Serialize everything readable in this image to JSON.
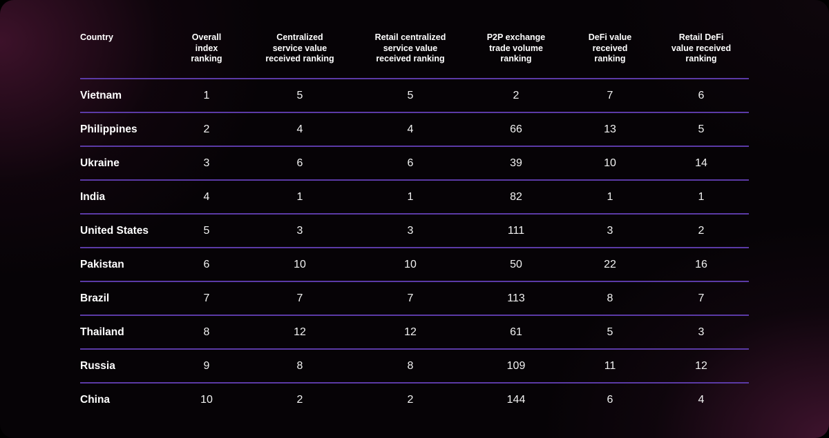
{
  "chart_data": {
    "type": "table",
    "columns": [
      "Country",
      "Overall index ranking",
      "Centralized service value received ranking",
      "Retail centralized service value received ranking",
      "P2P exchange trade volume ranking",
      "DeFi value received ranking",
      "Retail DeFi value received ranking"
    ],
    "header_lines": [
      [
        "Country"
      ],
      [
        "Overall",
        "index",
        "ranking"
      ],
      [
        "Centralized",
        "service value",
        "received ranking"
      ],
      [
        "Retail centralized",
        "service value",
        "received ranking"
      ],
      [
        "P2P exchange",
        "trade volume",
        "ranking"
      ],
      [
        "DeFi value",
        "received",
        "ranking"
      ],
      [
        "Retail DeFi",
        "value received",
        "ranking"
      ]
    ],
    "rows": [
      [
        "Vietnam",
        "1",
        "5",
        "5",
        "2",
        "7",
        "6"
      ],
      [
        "Philippines",
        "2",
        "4",
        "4",
        "66",
        "13",
        "5"
      ],
      [
        "Ukraine",
        "3",
        "6",
        "6",
        "39",
        "10",
        "14"
      ],
      [
        "India",
        "4",
        "1",
        "1",
        "82",
        "1",
        "1"
      ],
      [
        "United States",
        "5",
        "3",
        "3",
        "111",
        "3",
        "2"
      ],
      [
        "Pakistan",
        "6",
        "10",
        "10",
        "50",
        "22",
        "16"
      ],
      [
        "Brazil",
        "7",
        "7",
        "7",
        "113",
        "8",
        "7"
      ],
      [
        "Thailand",
        "8",
        "12",
        "12",
        "61",
        "5",
        "3"
      ],
      [
        "Russia",
        "9",
        "8",
        "8",
        "109",
        "11",
        "12"
      ],
      [
        "China",
        "10",
        "2",
        "2",
        "144",
        "6",
        "4"
      ]
    ]
  },
  "colors": {
    "divider": "#5b3aa6",
    "text": "#ffffff",
    "background": "#060306",
    "glow": "#461430"
  }
}
